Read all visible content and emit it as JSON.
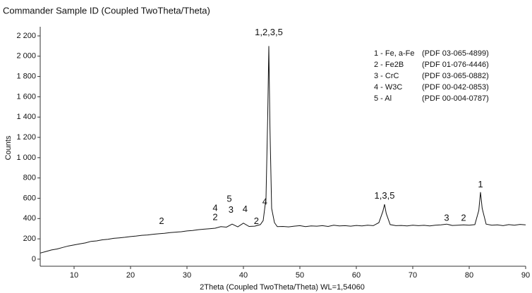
{
  "chart_data": {
    "type": "line",
    "title": "Commander Sample ID (Coupled TwoTheta/Theta)",
    "x_label": "2Theta (Coupled TwoTheta/Theta) WL=1,54060",
    "y_label": "Counts",
    "xlim": [
      4,
      90
    ],
    "xticks": [
      10,
      20,
      30,
      40,
      50,
      60,
      70,
      80,
      90
    ],
    "ylim": [
      -70,
      2290
    ],
    "yticks": [
      0,
      200,
      400,
      600,
      800,
      {
        "value": 1000,
        "label": "1 000"
      },
      {
        "value": 1200,
        "label": "1 200"
      },
      {
        "value": 1400,
        "label": "1 400"
      },
      {
        "value": 1600,
        "label": "1 600"
      },
      {
        "value": 1800,
        "label": "1 800"
      },
      {
        "value": 2000,
        "label": "2 000"
      },
      {
        "value": 2200,
        "label": "2 200"
      }
    ],
    "color": "#111111",
    "x": [
      4,
      5,
      6,
      7,
      8,
      9,
      10,
      11,
      12,
      13,
      14,
      15,
      16,
      17,
      18,
      19,
      20,
      21,
      22,
      23,
      24,
      25,
      26,
      27,
      28,
      29,
      30,
      31,
      32,
      33,
      34,
      35,
      36,
      37,
      38,
      39,
      40,
      41,
      42,
      43,
      43.5,
      44,
      44.3,
      44.5,
      44.7,
      45,
      45.5,
      46,
      47,
      48,
      49,
      50,
      51,
      52,
      53,
      54,
      55,
      56,
      57,
      58,
      59,
      60,
      61,
      62,
      63,
      64,
      64.7,
      65,
      65.3,
      66,
      67,
      68,
      69,
      70,
      71,
      72,
      73,
      74,
      75,
      76,
      77,
      78,
      79,
      80,
      81,
      81.7,
      82,
      82.3,
      83,
      84,
      85,
      86,
      87,
      88,
      89,
      90
    ],
    "values": [
      60,
      75,
      90,
      100,
      115,
      130,
      140,
      150,
      160,
      175,
      180,
      190,
      195,
      205,
      210,
      215,
      222,
      228,
      235,
      238,
      245,
      250,
      255,
      262,
      266,
      270,
      278,
      282,
      290,
      295,
      300,
      305,
      320,
      315,
      345,
      318,
      355,
      322,
      325,
      340,
      380,
      600,
      1400,
      2100,
      1300,
      500,
      360,
      320,
      322,
      318,
      325,
      330,
      320,
      328,
      325,
      330,
      322,
      335,
      328,
      330,
      325,
      332,
      328,
      335,
      330,
      360,
      470,
      540,
      450,
      340,
      330,
      332,
      328,
      335,
      330,
      333,
      328,
      335,
      338,
      345,
      332,
      335,
      338,
      335,
      340,
      480,
      660,
      500,
      345,
      335,
      338,
      330,
      340,
      335,
      342,
      338
    ],
    "annotations": [
      {
        "text": "1,2,3,5",
        "x": 44.5,
        "y": 2230
      },
      {
        "text": "1,3,5",
        "x": 65,
        "y": 620
      },
      {
        "text": "1",
        "x": 82,
        "y": 730
      },
      {
        "text": "2",
        "x": 25.5,
        "y": 370
      },
      {
        "text": "4",
        "x": 35,
        "y": 500
      },
      {
        "text": "2",
        "x": 35,
        "y": 410
      },
      {
        "text": "5",
        "x": 37.5,
        "y": 590
      },
      {
        "text": "3",
        "x": 37.8,
        "y": 480
      },
      {
        "text": "4",
        "x": 40.3,
        "y": 490
      },
      {
        "text": "2",
        "x": 42.3,
        "y": 370
      },
      {
        "text": "4",
        "x": 43.8,
        "y": 560
      },
      {
        "text": "3",
        "x": 76,
        "y": 400
      },
      {
        "text": "2",
        "x": 79,
        "y": 400
      }
    ],
    "phase_legend": [
      {
        "label": "1 - Fe, a-Fe",
        "pdf": "(PDF 03-065-4899)"
      },
      {
        "label": "2 - Fe2B",
        "pdf": "(PDF 01-076-4446)"
      },
      {
        "label": "3 - CrC",
        "pdf": "(PDF 03-065-0882)"
      },
      {
        "label": "4 - W3C",
        "pdf": "(PDF 00-042-0853)"
      },
      {
        "label": "5 - Al",
        "pdf": "(PDF 00-004-0787)"
      }
    ]
  }
}
